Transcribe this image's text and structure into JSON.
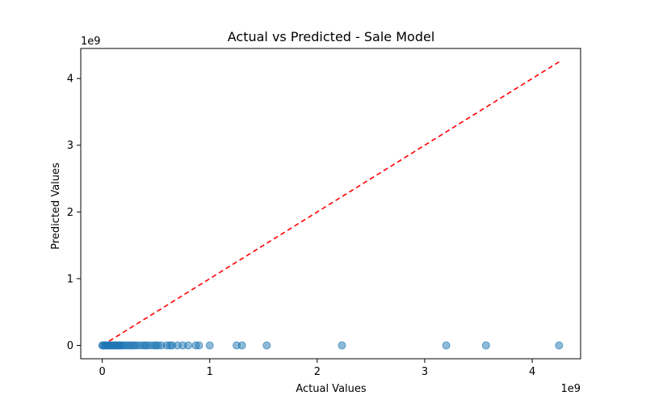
{
  "chart_data": {
    "type": "scatter",
    "title": "Actual vs Predicted - Sale Model",
    "xlabel": "Actual Values",
    "ylabel": "Predicted Values",
    "x_offset_label": "1e9",
    "y_offset_label": "1e9",
    "xlim": [
      -0.2,
      4.45
    ],
    "ylim": [
      -0.2,
      4.45
    ],
    "x_ticks": [
      0,
      1,
      2,
      3,
      4
    ],
    "y_ticks": [
      0,
      1,
      2,
      3,
      4
    ],
    "x_tick_labels": [
      "0",
      "1",
      "2",
      "3",
      "4"
    ],
    "y_tick_labels": [
      "0",
      "1",
      "2",
      "3",
      "4"
    ],
    "grid": false,
    "point_color": "#1f77b4",
    "line_color": "#ff0000",
    "reference_line": {
      "style": "dashed",
      "x": [
        0,
        4.25
      ],
      "y": [
        0,
        4.25
      ]
    },
    "points": {
      "x": [
        0.0,
        0.01,
        0.02,
        0.03,
        0.04,
        0.05,
        0.06,
        0.07,
        0.08,
        0.09,
        0.1,
        0.11,
        0.12,
        0.13,
        0.14,
        0.15,
        0.16,
        0.17,
        0.18,
        0.2,
        0.22,
        0.24,
        0.26,
        0.28,
        0.3,
        0.32,
        0.35,
        0.38,
        0.4,
        0.42,
        0.45,
        0.48,
        0.5,
        0.52,
        0.55,
        0.6,
        0.63,
        0.65,
        0.7,
        0.75,
        0.8,
        0.87,
        0.9,
        1.0,
        1.25,
        1.3,
        1.53,
        2.23,
        3.2,
        3.57,
        4.25
      ],
      "y": [
        0.0,
        0.0,
        0.0,
        0.0,
        0.0,
        0.0,
        0.0,
        0.0,
        0.0,
        0.0,
        0.0,
        0.0,
        0.0,
        0.0,
        0.0,
        0.0,
        0.0,
        0.0,
        0.0,
        0.0,
        0.0,
        0.0,
        0.0,
        0.0,
        0.0,
        0.0,
        0.0,
        0.0,
        0.0,
        0.0,
        0.0,
        0.0,
        0.0,
        0.0,
        0.0,
        0.0,
        0.0,
        0.0,
        0.0,
        0.0,
        0.0,
        0.0,
        0.0,
        0.0,
        0.0,
        0.0,
        0.0,
        0.0,
        0.0,
        0.0,
        0.0
      ]
    }
  }
}
